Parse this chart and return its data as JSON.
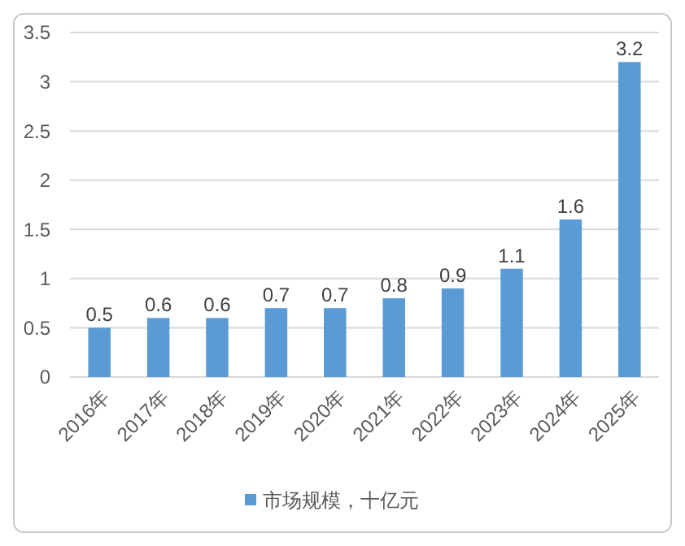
{
  "chart_data": {
    "type": "bar",
    "categories": [
      "2016年",
      "2017年",
      "2018年",
      "2019年",
      "2020年",
      "2021年",
      "2022年",
      "2023年",
      "2024年",
      "2025年"
    ],
    "series": [
      {
        "name": "市场规模，十亿元",
        "color": "#5b9bd5",
        "values": [
          0.5,
          0.6,
          0.6,
          0.7,
          0.7,
          0.8,
          0.9,
          1.1,
          1.6,
          3.2
        ]
      }
    ],
    "ylim": [
      0,
      3.5
    ],
    "yticks": [
      0,
      0.5,
      1,
      1.5,
      2,
      2.5,
      3,
      3.5
    ],
    "grid": "y",
    "data_labels": true,
    "legend": "bottom"
  }
}
